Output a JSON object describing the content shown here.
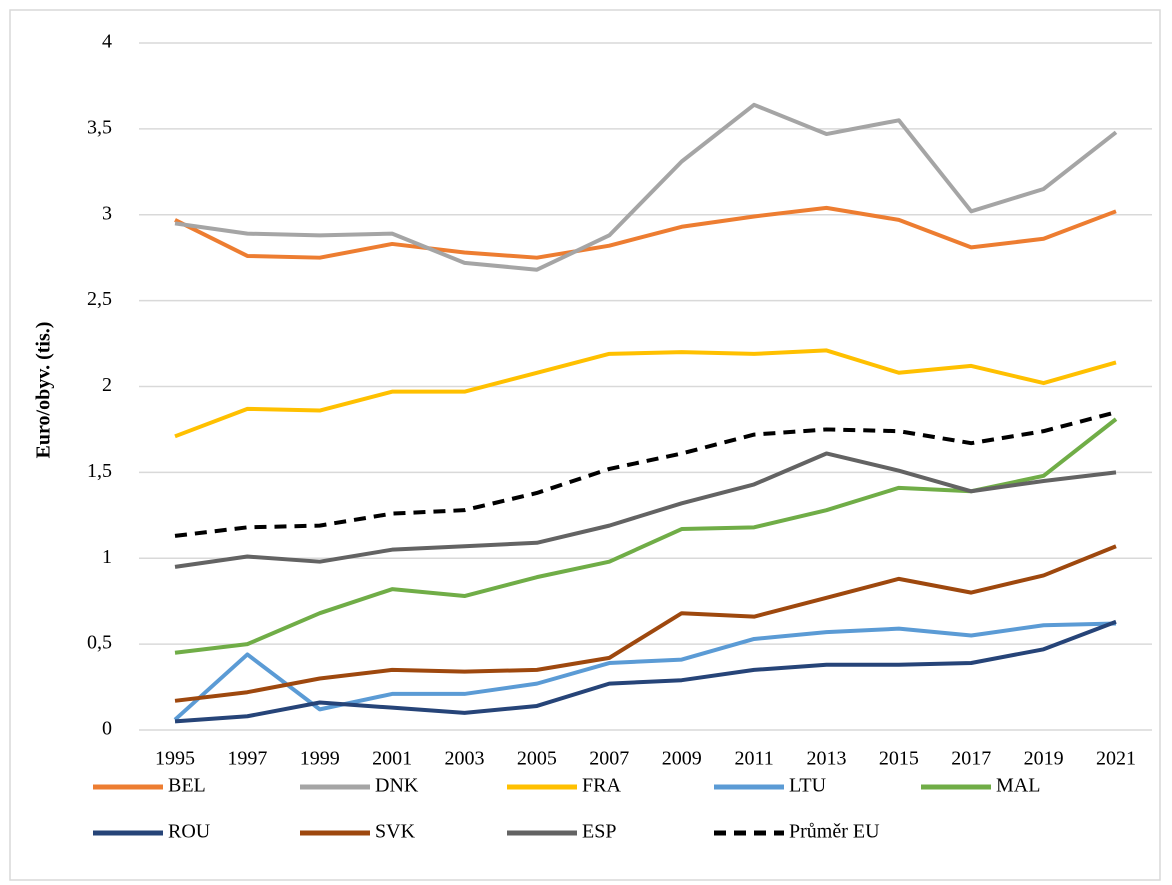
{
  "chart_data": {
    "type": "line",
    "y_label": "Euro/obyv. (tis.)",
    "x": [
      1995,
      1997,
      1999,
      2001,
      2003,
      2005,
      2007,
      2009,
      2011,
      2013,
      2015,
      2017,
      2019,
      2021
    ],
    "xlim": [
      1995,
      2021
    ],
    "ylim": [
      0,
      4
    ],
    "yticks": [
      0,
      {
        "value": 0.5,
        "label": "0,5"
      },
      1,
      {
        "value": 1.5,
        "label": "1,5"
      },
      2,
      {
        "value": 2.5,
        "label": "2,5"
      },
      3,
      {
        "value": 3.5,
        "label": "3,5"
      },
      4
    ],
    "grid": true,
    "legend": "bottom",
    "series": [
      {
        "name": "BEL",
        "color": "#ed7d31",
        "values": [
          2.97,
          2.76,
          2.75,
          2.83,
          2.78,
          2.75,
          2.82,
          2.93,
          2.99,
          3.04,
          2.97,
          2.81,
          2.86,
          3.02
        ]
      },
      {
        "name": "DNK",
        "color": "#a5a5a5",
        "values": [
          2.95,
          2.89,
          2.88,
          2.89,
          2.72,
          2.68,
          2.88,
          3.31,
          3.64,
          3.47,
          3.55,
          3.02,
          3.15,
          3.48
        ]
      },
      {
        "name": "FRA",
        "color": "#ffc000",
        "values": [
          1.71,
          1.87,
          1.86,
          1.97,
          1.97,
          2.08,
          2.19,
          2.2,
          2.19,
          2.21,
          2.08,
          2.12,
          2.02,
          2.14
        ]
      },
      {
        "name": "LTU",
        "color": "#5b9bd5",
        "values": [
          0.06,
          0.44,
          0.12,
          0.21,
          0.21,
          0.27,
          0.39,
          0.41,
          0.53,
          0.57,
          0.59,
          0.55,
          0.61,
          0.62
        ]
      },
      {
        "name": "MAL",
        "color": "#70ad47",
        "values": [
          0.45,
          0.5,
          0.68,
          0.82,
          0.78,
          0.89,
          0.98,
          1.17,
          1.18,
          1.28,
          1.41,
          1.39,
          1.48,
          1.81
        ]
      },
      {
        "name": "ROU",
        "color": "#264478",
        "values": [
          0.05,
          0.08,
          0.16,
          0.13,
          0.1,
          0.14,
          0.27,
          0.29,
          0.35,
          0.38,
          0.38,
          0.39,
          0.47,
          0.63
        ]
      },
      {
        "name": "SVK",
        "color": "#9e480e",
        "values": [
          0.17,
          0.22,
          0.3,
          0.35,
          0.34,
          0.35,
          0.42,
          0.68,
          0.66,
          0.77,
          0.88,
          0.8,
          0.9,
          1.07
        ]
      },
      {
        "name": "ESP",
        "color": "#636363",
        "values": [
          0.95,
          1.01,
          0.98,
          1.05,
          1.07,
          1.09,
          1.19,
          1.32,
          1.43,
          1.61,
          1.51,
          1.39,
          1.45,
          1.5
        ]
      },
      {
        "name": "Průměr EU",
        "color": "#000000",
        "dashed": true,
        "values": [
          1.13,
          1.18,
          1.19,
          1.26,
          1.28,
          1.38,
          1.52,
          1.61,
          1.72,
          1.75,
          1.74,
          1.67,
          1.74,
          1.85
        ]
      }
    ]
  }
}
